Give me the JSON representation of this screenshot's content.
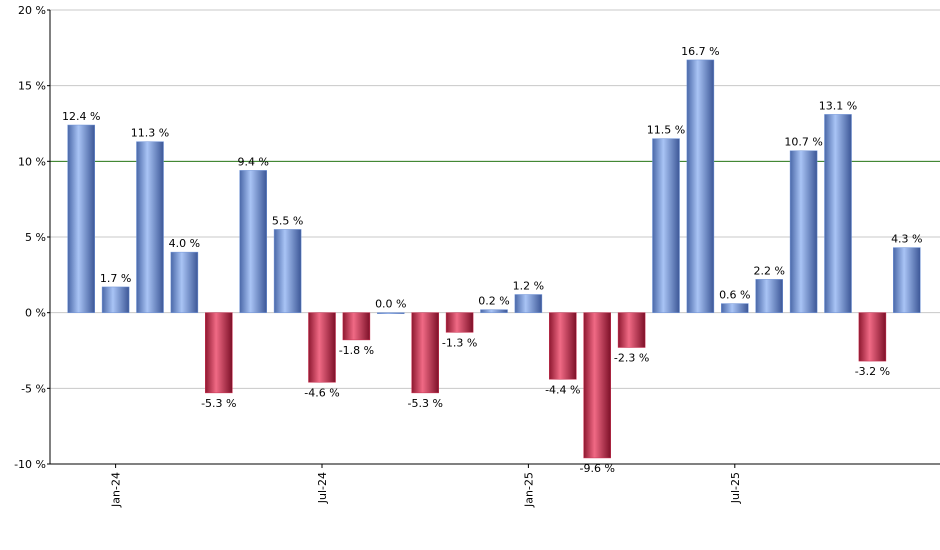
{
  "chart_data": {
    "type": "bar",
    "categories": [
      null,
      "Jan-24",
      null,
      null,
      null,
      null,
      null,
      "Jul-24",
      null,
      null,
      null,
      null,
      null,
      "Jan-25",
      null,
      null,
      null,
      null,
      null,
      "Jul-25",
      null,
      null,
      null,
      null,
      null
    ],
    "values": [
      12.4,
      1.7,
      11.3,
      4.0,
      -5.3,
      9.4,
      5.5,
      -4.6,
      -1.8,
      0.0,
      -5.3,
      -1.3,
      0.2,
      1.2,
      -4.4,
      -9.6,
      -2.3,
      11.5,
      16.7,
      0.6,
      2.2,
      10.7,
      13.1,
      -3.2,
      4.3
    ],
    "value_labels": [
      "12.4 %",
      "1.7 %",
      "11.3 %",
      "4.0 %",
      "-5.3 %",
      "9.4 %",
      "5.5 %",
      "-4.6 %",
      "-1.8 %",
      "0.0 %",
      "-5.3 %",
      "-1.3 %",
      "0.2 %",
      "1.2 %",
      "-4.4 %",
      "-9.6 %",
      "-2.3 %",
      "11.5 %",
      "16.7 %",
      "0.6 %",
      "2.2 %",
      "10.7 %",
      "13.1 %",
      "-3.2 %",
      "4.3 %"
    ],
    "positive_color": "#6f93d8",
    "negative_color": "#c8284a",
    "reference_line": 10,
    "reference_color": "#2e7d1e",
    "ylim": [
      -10,
      20
    ],
    "yticks": [
      {
        "value": -10,
        "label": "-10 %"
      },
      {
        "value": -5,
        "label": "-5 %"
      },
      {
        "value": 0,
        "label": "0 %"
      },
      {
        "value": 5,
        "label": "5 %"
      },
      {
        "value": 10,
        "label": "10 %"
      },
      {
        "value": 15,
        "label": "15 %"
      },
      {
        "value": 20,
        "label": "20 %"
      }
    ],
    "grid": true
  }
}
